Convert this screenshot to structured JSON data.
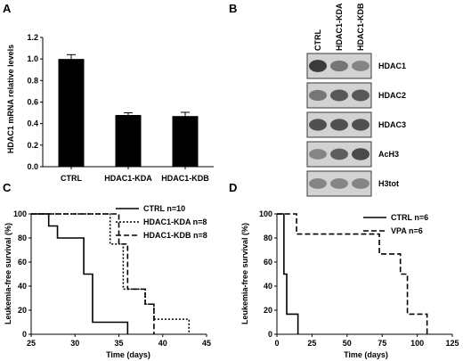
{
  "panels": {
    "A": "A",
    "B": "B",
    "C": "C",
    "D": "D"
  },
  "chart_data": [
    {
      "panel": "A",
      "type": "bar",
      "categories": [
        "CTRL",
        "HDAC1-KDA",
        "HDAC1-KDB"
      ],
      "values": [
        1.0,
        0.48,
        0.47
      ],
      "errors": [
        0.04,
        0.02,
        0.035
      ],
      "ylabel": "HDAC1 mRNA relative levels",
      "ylim": [
        0,
        1.2
      ],
      "yticks": [
        "0.0",
        "0.2",
        "0.4",
        "0.6",
        "0.8",
        "1.0",
        "1.2"
      ],
      "grid": false,
      "bar_color": "#000000"
    },
    {
      "panel": "C",
      "type": "line",
      "step": true,
      "xlabel": "Time (days)",
      "ylabel": "Leukemia-free survival (%)",
      "xlim": [
        25,
        45
      ],
      "ylim": [
        0,
        100
      ],
      "xticks": [
        "25",
        "30",
        "35",
        "40",
        "45"
      ],
      "yticks": [
        "0",
        "20",
        "40",
        "60",
        "80",
        "100"
      ],
      "legend": "top-right",
      "series": [
        {
          "name": "CTRL n=10",
          "style": "solid",
          "x": [
            25,
            27,
            28,
            31,
            32,
            36
          ],
          "y": [
            100,
            90,
            80,
            50,
            10,
            0
          ]
        },
        {
          "name": "HDAC1-KDA n=8",
          "style": "dotted",
          "x": [
            25,
            33,
            34,
            35.5,
            38,
            39,
            43
          ],
          "y": [
            100,
            100,
            75,
            37.5,
            25,
            12.5,
            0
          ]
        },
        {
          "name": "HDAC1-KDB n=8",
          "style": "dashed",
          "x": [
            25,
            32,
            35,
            36,
            38,
            39
          ],
          "y": [
            100,
            100,
            75,
            37.5,
            25,
            0
          ]
        }
      ]
    },
    {
      "panel": "D",
      "type": "line",
      "step": true,
      "xlabel": "Time (days)",
      "ylabel": "Leukemia-free survival (%)",
      "xlim": [
        0,
        125
      ],
      "ylim": [
        0,
        100
      ],
      "xticks": [
        "0",
        "25",
        "50",
        "75",
        "100",
        "125"
      ],
      "yticks": [
        "0",
        "20",
        "40",
        "60",
        "80",
        "100"
      ],
      "legend": "top-right",
      "series": [
        {
          "name": "CTRL n=6",
          "style": "solid",
          "x": [
            0,
            5,
            7,
            10,
            15
          ],
          "y": [
            100,
            50,
            16.7,
            16.7,
            0
          ]
        },
        {
          "name": "VPA n=6",
          "style": "dashed",
          "x": [
            0,
            14,
            73,
            88,
            93,
            107
          ],
          "y": [
            100,
            83.3,
            66.7,
            50,
            16.7,
            0
          ]
        }
      ]
    }
  ],
  "blot": {
    "lanes": [
      "CTRL",
      "HDAC1-KDA",
      "HDAC1-KDB"
    ],
    "rows": [
      {
        "label": "HDAC1",
        "intensity": [
          0.95,
          0.55,
          0.45
        ]
      },
      {
        "label": "HDAC2",
        "intensity": [
          0.55,
          0.75,
          0.75
        ]
      },
      {
        "label": "HDAC3",
        "intensity": [
          0.8,
          0.8,
          0.8
        ]
      },
      {
        "label": "AcH3",
        "intensity": [
          0.45,
          0.7,
          0.85
        ]
      },
      {
        "label": "H3tot",
        "intensity": [
          0.45,
          0.45,
          0.45
        ]
      }
    ]
  }
}
